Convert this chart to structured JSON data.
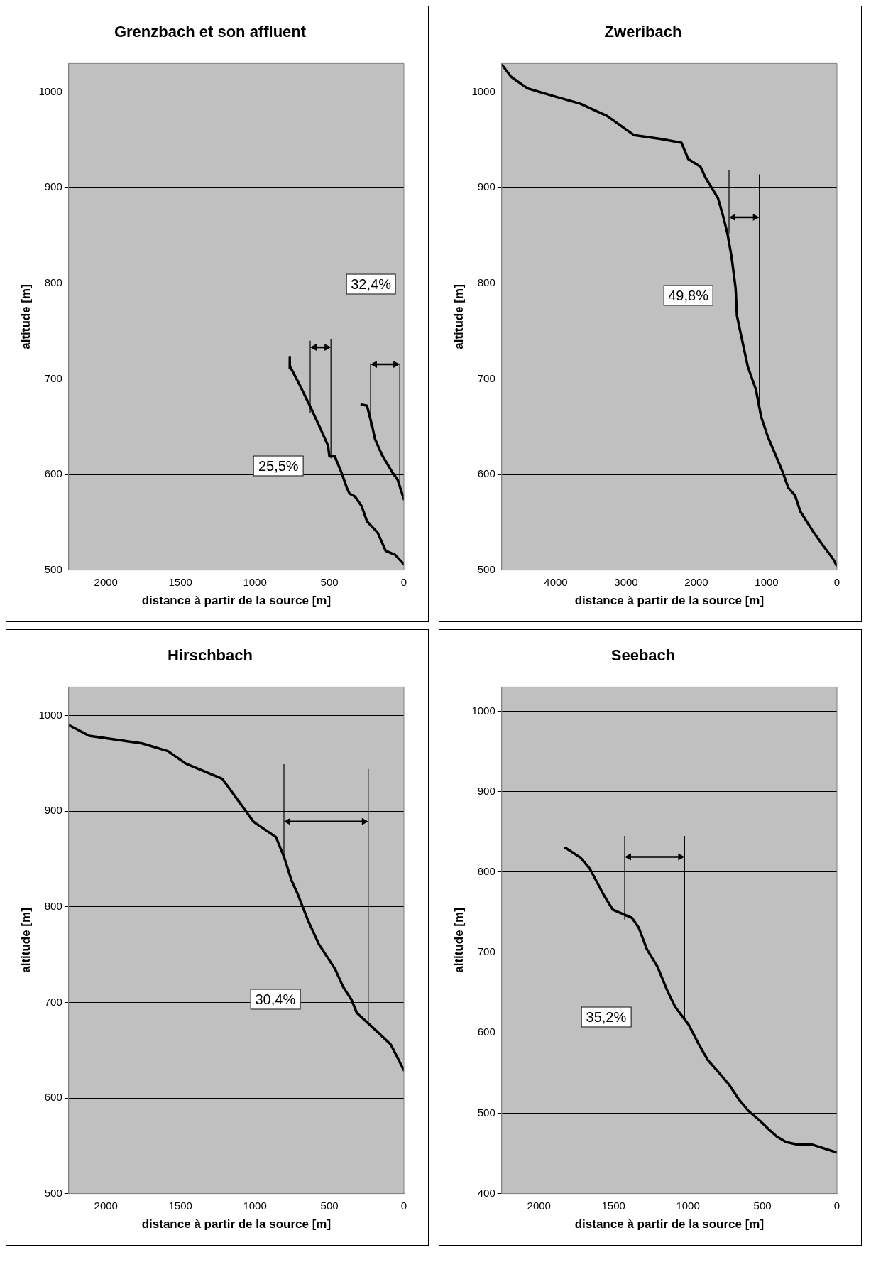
{
  "chart_data": [
    {
      "type": "line",
      "title": "Grenzbach et son affluent",
      "xlabel": "distance à partir de la source [m]",
      "ylabel": "altitude [m]",
      "xlim": [
        2250,
        0
      ],
      "xticks": [
        0,
        500,
        1000,
        1500,
        2000
      ],
      "ylim": [
        500,
        1030
      ],
      "yticks": [
        500,
        600,
        700,
        800,
        900,
        1000
      ],
      "grid": "y",
      "series": [
        {
          "color": "#000000",
          "x": [
            0,
            59,
            122,
            176,
            248,
            284,
            329,
            365,
            383,
            419,
            464,
            500,
            509,
            563,
            635,
            707,
            761,
            766,
            766
          ],
          "values": [
            506,
            516,
            520,
            539,
            551,
            567,
            577,
            580,
            586,
            602,
            619,
            619,
            630,
            649,
            673,
            696,
            712,
            711,
            723
          ]
        },
        {
          "color": "#000000",
          "x": [
            0,
            41,
            77,
            149,
            194,
            212,
            248,
            284
          ],
          "values": [
            574,
            594,
            602,
            621,
            637,
            650,
            672,
            673
          ]
        }
      ],
      "annotations": [
        "32,4%",
        "25,5%"
      ]
    },
    {
      "type": "line",
      "title": "Zweribach",
      "xlabel": "distance à partir de la source [m]",
      "ylabel": "altitude [m]",
      "xlim": [
        4770,
        0
      ],
      "xticks": [
        0,
        1000,
        2000,
        3000,
        4000
      ],
      "ylim": [
        500,
        1030
      ],
      "yticks": [
        500,
        600,
        700,
        800,
        900,
        1000
      ],
      "grid": "y",
      "series": [
        {
          "color": "#000000",
          "x": [
            0,
            58,
            192,
            346,
            519,
            596,
            692,
            769,
            865,
            981,
            1077,
            1154,
            1269,
            1365,
            1423,
            1442,
            1500,
            1558,
            1615,
            1692,
            1865,
            1942,
            2115,
            2212,
            2500,
            2885,
            3269,
            3654,
            4038,
            4404,
            4635,
            4770
          ],
          "values": [
            504,
            512,
            525,
            541,
            561,
            578,
            586,
            602,
            619,
            639,
            660,
            689,
            713,
            746,
            766,
            795,
            828,
            852,
            869,
            889,
            910,
            922,
            930,
            947,
            951,
            955,
            975,
            988,
            996,
            1004,
            1016,
            1029
          ]
        }
      ],
      "annotations": [
        "49,8%"
      ]
    },
    {
      "type": "line",
      "title": "Hirschbach",
      "xlabel": "distance à partir de la source [m]",
      "ylabel": "altitude [m]",
      "xlim": [
        2250,
        0
      ],
      "xticks": [
        0,
        500,
        1000,
        1500,
        2000
      ],
      "ylim": [
        500,
        1030
      ],
      "yticks": [
        500,
        600,
        700,
        800,
        900,
        1000
      ],
      "grid": "y",
      "series": [
        {
          "color": "#000000",
          "x": [
            0,
            88,
            197,
            316,
            352,
            407,
            462,
            571,
            644,
            717,
            753,
            804,
            859,
            1009,
            1219,
            1465,
            1584,
            1757,
            2113,
            2245
          ],
          "values": [
            629,
            656,
            672,
            689,
            703,
            716,
            735,
            761,
            786,
            815,
            827,
            852,
            873,
            889,
            934,
            950,
            963,
            971,
            979,
            990
          ]
        }
      ],
      "annotations": [
        "30,4%"
      ]
    },
    {
      "type": "line",
      "title": "Seebach",
      "xlabel": "distance à partir de la source [m]",
      "ylabel": "altitude [m]",
      "xlim": [
        2250,
        0
      ],
      "xticks": [
        0,
        500,
        1000,
        1500,
        2000
      ],
      "ylim": [
        400,
        1030
      ],
      "yticks": [
        400,
        500,
        600,
        700,
        800,
        900,
        1000
      ],
      "grid": "y",
      "series": [
        {
          "color": "#000000",
          "x": [
            0,
            167,
            267,
            340,
            404,
            458,
            513,
            595,
            658,
            722,
            795,
            867,
            931,
            995,
            1085,
            1140,
            1204,
            1276,
            1331,
            1376,
            1504,
            1567,
            1658,
            1722,
            1822
          ],
          "values": [
            451,
            461,
            461,
            464,
            471,
            480,
            490,
            503,
            517,
            535,
            551,
            566,
            587,
            610,
            632,
            653,
            682,
            704,
            731,
            743,
            753,
            772,
            804,
            818,
            830
          ]
        }
      ],
      "annotations": [
        "35,2%"
      ]
    }
  ]
}
